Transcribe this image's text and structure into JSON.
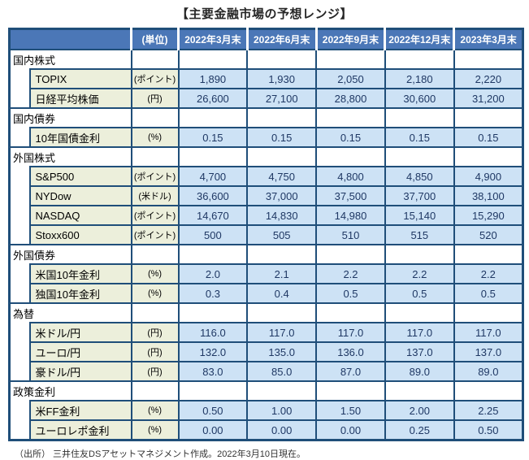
{
  "title": "【主要金融市場の予想レンジ】",
  "footer": "（出所） 三井住友DSアセットマネジメント作成。2022年3月10日現在。",
  "colors": {
    "border_navy": "#1F4E79",
    "header_blue": "#4B77B7",
    "value_cell_blue": "#CDE2F5",
    "label_cell_yellow": "#ECEFDB",
    "value_text_navy": "#1F3864"
  },
  "chart_data": {
    "type": "table",
    "title": "主要金融市場の予想レンジ",
    "unit_header": "(単位)",
    "columns": [
      "2022年3月末",
      "2022年6月末",
      "2022年9月末",
      "2022年12月末",
      "2023年3月末"
    ],
    "sections": [
      {
        "name": "国内株式",
        "rows": [
          {
            "label": "TOPIX",
            "unit": "(ポイント)",
            "values": [
              "1,890",
              "1,930",
              "2,050",
              "2,180",
              "2,220"
            ]
          },
          {
            "label": "日経平均株価",
            "unit": "(円)",
            "values": [
              "26,600",
              "27,100",
              "28,800",
              "30,600",
              "31,200"
            ]
          }
        ]
      },
      {
        "name": "国内債券",
        "rows": [
          {
            "label": "10年国債金利",
            "unit": "(%)",
            "values": [
              "0.15",
              "0.15",
              "0.15",
              "0.15",
              "0.15"
            ]
          }
        ]
      },
      {
        "name": "外国株式",
        "rows": [
          {
            "label": "S&P500",
            "unit": "(ポイント)",
            "values": [
              "4,700",
              "4,750",
              "4,800",
              "4,850",
              "4,900"
            ]
          },
          {
            "label": "NYDow",
            "unit": "(米ドル)",
            "values": [
              "36,600",
              "37,000",
              "37,500",
              "37,700",
              "38,100"
            ]
          },
          {
            "label": "NASDAQ",
            "unit": "(ポイント)",
            "values": [
              "14,670",
              "14,830",
              "14,980",
              "15,140",
              "15,290"
            ]
          },
          {
            "label": "Stoxx600",
            "unit": "(ポイント)",
            "values": [
              "500",
              "505",
              "510",
              "515",
              "520"
            ]
          }
        ]
      },
      {
        "name": "外国債券",
        "rows": [
          {
            "label": "米国10年金利",
            "unit": "(%)",
            "values": [
              "2.0",
              "2.1",
              "2.2",
              "2.2",
              "2.2"
            ]
          },
          {
            "label": "独国10年金利",
            "unit": "(%)",
            "values": [
              "0.3",
              "0.4",
              "0.5",
              "0.5",
              "0.5"
            ]
          }
        ]
      },
      {
        "name": "為替",
        "rows": [
          {
            "label": "米ドル/円",
            "unit": "(円)",
            "values": [
              "116.0",
              "117.0",
              "117.0",
              "117.0",
              "117.0"
            ]
          },
          {
            "label": "ユーロ/円",
            "unit": "(円)",
            "values": [
              "132.0",
              "135.0",
              "136.0",
              "137.0",
              "137.0"
            ]
          },
          {
            "label": "豪ドル/円",
            "unit": "(円)",
            "values": [
              "83.0",
              "85.0",
              "87.0",
              "89.0",
              "89.0"
            ]
          }
        ]
      },
      {
        "name": "政策金利",
        "rows": [
          {
            "label": "米FF金利",
            "unit": "(%)",
            "values": [
              "0.50",
              "1.00",
              "1.50",
              "2.00",
              "2.25"
            ]
          },
          {
            "label": "ユーロレポ金利",
            "unit": "(%)",
            "values": [
              "0.00",
              "0.00",
              "0.00",
              "0.25",
              "0.50"
            ]
          }
        ]
      }
    ]
  }
}
